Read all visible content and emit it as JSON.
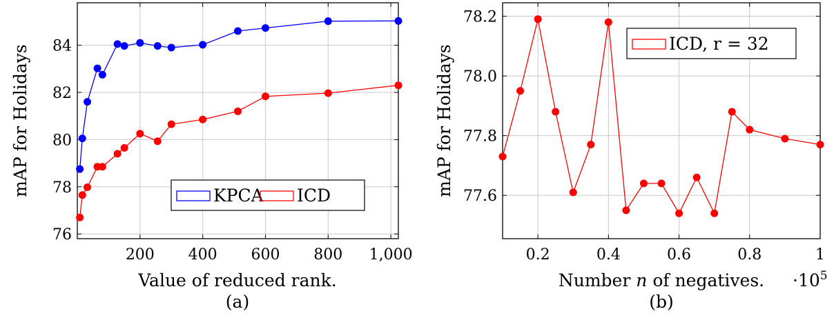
{
  "chart_data": [
    {
      "type": "line",
      "caption": "(a)",
      "xlabel": "Value of reduced rank.",
      "ylabel": "mAP for Holidays",
      "xlim": [
        0,
        1024
      ],
      "ylim": [
        75.8,
        85.8
      ],
      "xticks": [
        200,
        400,
        600,
        800,
        1000
      ],
      "xtick_labels": [
        "200",
        "400",
        "600",
        "800",
        "1,000"
      ],
      "yticks": [
        76,
        78,
        80,
        82,
        84
      ],
      "ytick_labels": [
        "76",
        "78",
        "80",
        "82",
        "84"
      ],
      "grid": true,
      "legend_position": "bottom-right",
      "series": [
        {
          "name": "KPCA",
          "color": "#0000ff",
          "x": [
            8,
            16,
            32,
            64,
            80,
            128,
            150,
            200,
            256,
            300,
            400,
            512,
            600,
            800,
            1024
          ],
          "y": [
            78.75,
            80.05,
            81.6,
            83.02,
            82.75,
            84.05,
            83.97,
            84.1,
            83.97,
            83.9,
            84.02,
            84.6,
            84.73,
            85.02,
            85.03
          ]
        },
        {
          "name": "ICD",
          "color": "#ff0000",
          "x": [
            8,
            16,
            32,
            64,
            80,
            128,
            150,
            200,
            256,
            300,
            400,
            512,
            600,
            800,
            1024
          ],
          "y": [
            76.7,
            77.65,
            77.98,
            78.85,
            78.85,
            79.4,
            79.65,
            80.25,
            79.93,
            80.65,
            80.85,
            81.2,
            81.83,
            81.97,
            82.3
          ]
        }
      ]
    },
    {
      "type": "line",
      "caption": "(b)",
      "xlabel": "Number n of negatives.",
      "xlabel_parts": {
        "before": "Number ",
        "var": "n",
        "after": " of negatives."
      },
      "x_multiplier": "·10",
      "x_multiplier_exp": "5",
      "ylabel": "mAP for Holidays",
      "xlim": [
        0.1,
        1
      ],
      "ylim": [
        77.455,
        78.245
      ],
      "xticks": [
        0.2,
        0.4,
        0.6,
        0.8,
        1
      ],
      "xtick_labels": [
        "0.2",
        "0.4",
        "0.6",
        "0.8",
        "1"
      ],
      "yticks": [
        77.6,
        77.8,
        78.0,
        78.2
      ],
      "ytick_labels": [
        "77.6",
        "77.8",
        "78.0",
        "78.2"
      ],
      "grid": true,
      "legend_position": "top-left",
      "series": [
        {
          "name": "ICD, r = 32",
          "color": "#ff0000",
          "x": [
            0.1,
            0.15,
            0.2,
            0.25,
            0.3,
            0.35,
            0.4,
            0.45,
            0.5,
            0.55,
            0.6,
            0.65,
            0.7,
            0.75,
            0.8,
            0.9,
            1.0
          ],
          "y": [
            77.73,
            77.95,
            78.19,
            77.88,
            77.61,
            77.77,
            78.18,
            77.55,
            77.64,
            77.64,
            77.54,
            77.66,
            77.54,
            77.88,
            77.82,
            77.79,
            77.77
          ]
        }
      ]
    }
  ]
}
